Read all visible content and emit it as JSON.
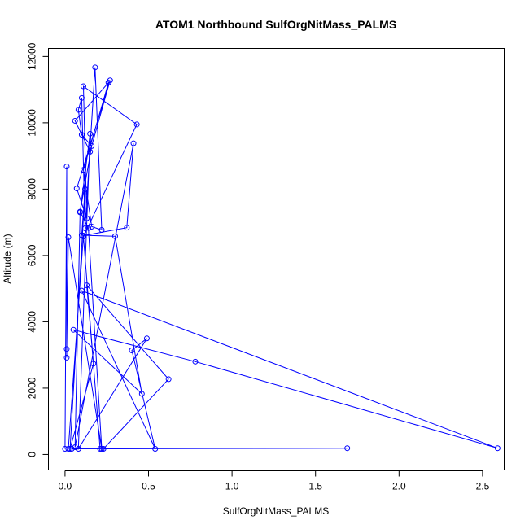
{
  "chart_data": {
    "type": "scatter",
    "title": "ATOM1 Northbound SulfOrgNitMass_PALMS",
    "xlabel": "SulfOrgNitMass_PALMS",
    "ylabel": "Altitude (m)",
    "xlim": [
      0,
      2.6
    ],
    "ylim": [
      0,
      12000
    ],
    "x_ticks": [
      0.0,
      0.5,
      1.0,
      1.5,
      2.0,
      2.5
    ],
    "x_tick_labels": [
      "0.0",
      "0.5",
      "1.0",
      "1.5",
      "2.0",
      "2.5"
    ],
    "y_ticks": [
      0,
      2000,
      4000,
      6000,
      8000,
      10000,
      12000
    ],
    "y_tick_labels": [
      "0",
      "2000",
      "4000",
      "6000",
      "8000",
      "10000",
      "12000"
    ],
    "grid": false,
    "legend": "none",
    "color": "#0000ff",
    "marker": "open-circle",
    "connected": true,
    "series": [
      {
        "x": [
          0.0,
          0.01,
          0.01,
          0.01,
          0.02,
          0.22,
          0.14,
          0.09,
          0.16,
          0.1,
          0.08,
          0.1,
          0.12,
          0.18,
          0.22,
          0.16,
          0.11,
          0.26,
          0.06,
          0.15,
          0.27,
          0.07,
          0.13,
          0.11,
          0.43,
          0.11,
          0.21,
          1.69,
          0.04,
          0.23,
          0.62,
          0.13,
          0.17,
          0.03,
          0.12,
          0.1,
          0.3,
          0.46,
          0.05,
          0.78,
          2.59,
          0.1,
          0.54,
          0.4,
          0.49,
          0.08,
          0.15,
          0.09,
          0.06,
          0.41,
          0.37,
          0.11,
          0.02
        ],
        "y": [
          170,
          8680,
          2920,
          3180,
          6550,
          170,
          6830,
          7320,
          9300,
          9640,
          10390,
          10750,
          6820,
          11670,
          6770,
          6870,
          8580,
          11210,
          10060,
          9130,
          11280,
          8020,
          7120,
          11100,
          9950,
          6570,
          170,
          190,
          170,
          170,
          2270,
          5100,
          2740,
          170,
          8000,
          6610,
          6580,
          1830,
          3760,
          2800,
          190,
          4940,
          170,
          3140,
          3500,
          170,
          9670,
          7300,
          220,
          9380,
          6840,
          6600,
          170
        ]
      }
    ]
  }
}
